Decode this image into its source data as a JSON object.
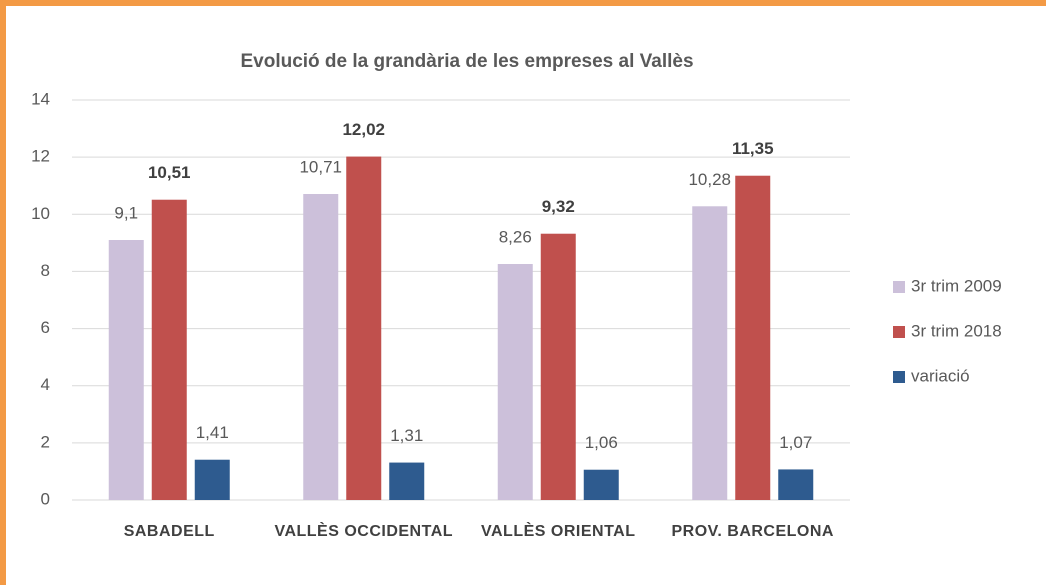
{
  "chart_data": {
    "type": "bar",
    "title": "Evolució de la grandària de les empreses al Vallès",
    "categories": [
      "SABADELL",
      "VALLÈS OCCIDENTAL",
      "VALLÈS ORIENTAL",
      "PROV. BARCELONA"
    ],
    "series": [
      {
        "name": "3r trim 2009",
        "color": "#ccc0da",
        "values": [
          9.1,
          10.71,
          8.26,
          10.28
        ],
        "value_labels": [
          "9,1",
          "10,71",
          "8,26",
          "10,28"
        ],
        "label_bold": false
      },
      {
        "name": "3r trim 2018",
        "color": "#c0504d",
        "values": [
          10.51,
          12.02,
          9.32,
          11.35
        ],
        "value_labels": [
          "10,51",
          "12,02",
          "9,32",
          "11,35"
        ],
        "label_bold": true
      },
      {
        "name": "variació",
        "color": "#2e5b8f",
        "values": [
          1.41,
          1.31,
          1.06,
          1.07
        ],
        "value_labels": [
          "1,41",
          "1,31",
          "1,06",
          "1,07"
        ],
        "label_bold": false
      }
    ],
    "ylim": [
      0,
      14
    ],
    "yticks": [
      0,
      2,
      4,
      6,
      8,
      10,
      12,
      14
    ],
    "grid": true,
    "legend": "right"
  }
}
